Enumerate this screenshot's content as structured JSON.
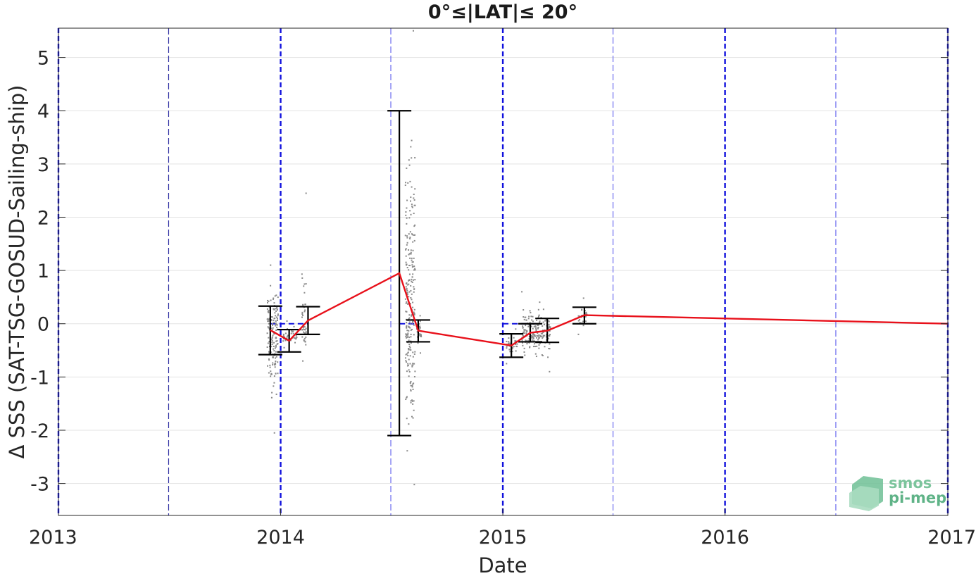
{
  "chart_data": {
    "type": "scatter",
    "title": "0°≤|LAT|≤ 20°",
    "xlabel": "Date",
    "ylabel": "Δ SSS (SAT-TSG-GOSUD-Sailing-ship)",
    "xlim": [
      "2013-01-01",
      "2017-01-01"
    ],
    "ylim": [
      -3.6,
      5.55
    ],
    "x_ticks": [
      "2013",
      "2014",
      "2015",
      "2016",
      "2017"
    ],
    "y_ticks": [
      -3,
      -2,
      -1,
      0,
      1,
      2,
      3,
      4,
      5
    ],
    "y_tick_labels": [
      "-3",
      "-2",
      "-1",
      "0",
      "1",
      "2",
      "3",
      "4",
      "5"
    ],
    "grid": "horizontal",
    "year_lines": [
      "2013-01-01",
      "2014-01-01",
      "2015-01-01",
      "2016-01-01",
      "2017-01-01"
    ],
    "half_year_lines": [
      "2013-07-01",
      "2014-07-01",
      "2015-07-01",
      "2016-07-01"
    ],
    "mean_series": {
      "color": "#e8101a",
      "points": [
        {
          "x": "2013-12-15",
          "y": -0.12
        },
        {
          "x": "2014-01-15",
          "y": -0.32
        },
        {
          "x": "2014-02-15",
          "y": 0.06
        },
        {
          "x": "2014-07-15",
          "y": 0.95
        },
        {
          "x": "2014-08-15",
          "y": -0.13
        },
        {
          "x": "2015-01-15",
          "y": -0.41
        },
        {
          "x": "2015-02-15",
          "y": -0.17
        },
        {
          "x": "2015-03-15",
          "y": -0.13
        },
        {
          "x": "2015-05-15",
          "y": 0.16
        },
        {
          "x": "2017-01-01",
          "y": 0.0
        }
      ]
    },
    "error_bars": [
      {
        "x": "2013-12-15",
        "low": -0.58,
        "high": 0.33
      },
      {
        "x": "2014-01-15",
        "low": -0.53,
        "high": -0.11
      },
      {
        "x": "2014-02-15",
        "low": -0.2,
        "high": 0.32
      },
      {
        "x": "2014-07-15",
        "low": -2.1,
        "high": 4.0
      },
      {
        "x": "2014-08-15",
        "low": -0.34,
        "high": 0.07
      },
      {
        "x": "2015-01-15",
        "low": -0.63,
        "high": -0.19
      },
      {
        "x": "2015-02-15",
        "low": -0.34,
        "high": 0.0
      },
      {
        "x": "2015-03-15",
        "low": -0.35,
        "high": 0.1
      },
      {
        "x": "2015-05-15",
        "low": 0.0,
        "high": 0.31
      }
    ],
    "zero_segments": [
      {
        "start": "2013-12-15",
        "end": "2014-02-15",
        "y": 0
      },
      {
        "start": "2014-07-15",
        "end": "2014-08-15",
        "y": 0
      },
      {
        "start": "2015-01-01",
        "end": "2015-03-01",
        "y": 0
      }
    ],
    "scatter_clusters": [
      {
        "x_start": "2013-12-10",
        "x_end": "2013-12-28",
        "y_min": -2.05,
        "y_max": 1.1,
        "center": -0.15,
        "count": 150
      },
      {
        "x_start": "2014-01-05",
        "x_end": "2014-01-28",
        "y_min": -0.45,
        "y_max": 0.05,
        "center": -0.25,
        "count": 40
      },
      {
        "x_start": "2014-02-05",
        "x_end": "2014-02-12",
        "y_min": -0.7,
        "y_max": 2.45,
        "center": -0.1,
        "count": 40
      },
      {
        "x_start": "2014-07-25",
        "x_end": "2014-08-10",
        "y_min": -3.02,
        "y_max": 5.5,
        "center": 0.3,
        "count": 250
      },
      {
        "x_start": "2014-08-12",
        "x_end": "2014-08-20",
        "y_min": -0.55,
        "y_max": 0.15,
        "center": -0.15,
        "count": 30
      },
      {
        "x_start": "2015-01-05",
        "x_end": "2015-01-25",
        "y_min": -0.75,
        "y_max": -0.1,
        "center": -0.42,
        "count": 40
      },
      {
        "x_start": "2015-02-01",
        "x_end": "2015-03-20",
        "y_min": -0.9,
        "y_max": 0.6,
        "center": -0.18,
        "count": 200
      },
      {
        "x_start": "2015-05-05",
        "x_end": "2015-05-20",
        "y_min": -0.2,
        "y_max": 0.48,
        "center": 0.15,
        "count": 30
      }
    ]
  },
  "logo": {
    "line1": "smos",
    "line2": "pi-mep"
  }
}
